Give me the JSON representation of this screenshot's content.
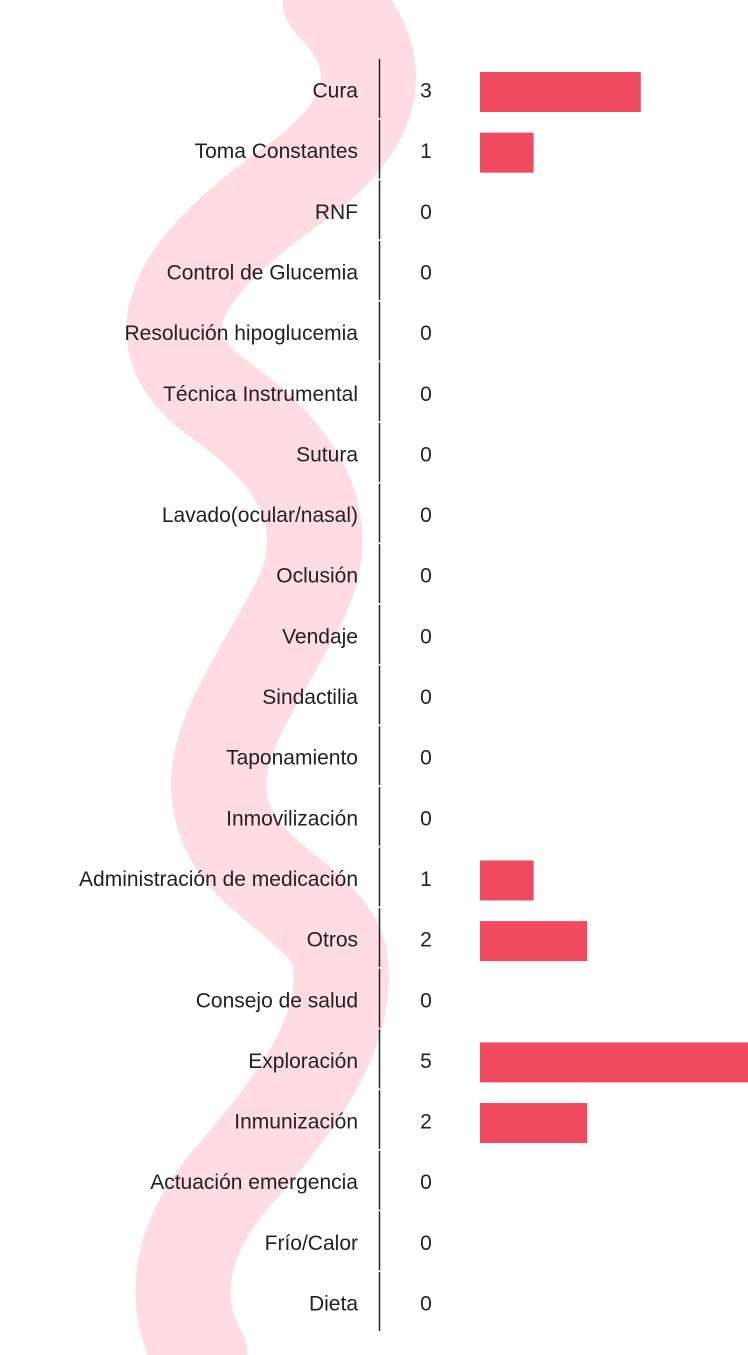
{
  "chart_data": {
    "type": "bar",
    "orientation": "horizontal",
    "color": "#ef4a60",
    "categories": [
      "Cura",
      "Toma Constantes",
      "RNF",
      "Control de Glucemia",
      "Resolución hipoglucemia",
      "Técnica Instrumental",
      "Sutura",
      "Lavado(ocular/nasal)",
      "Oclusión",
      "Vendaje",
      "Sindactilia",
      "Taponamiento",
      "Inmovilización",
      "Administración de medicación",
      "Otros",
      "Consejo de salud",
      "Exploración",
      "Inmunización",
      "Actuación emergencia",
      "Frío/Calor",
      "Dieta"
    ],
    "values": [
      3,
      1,
      0,
      0,
      0,
      0,
      0,
      0,
      0,
      0,
      0,
      0,
      0,
      1,
      2,
      0,
      5,
      2,
      0,
      0,
      0
    ]
  }
}
